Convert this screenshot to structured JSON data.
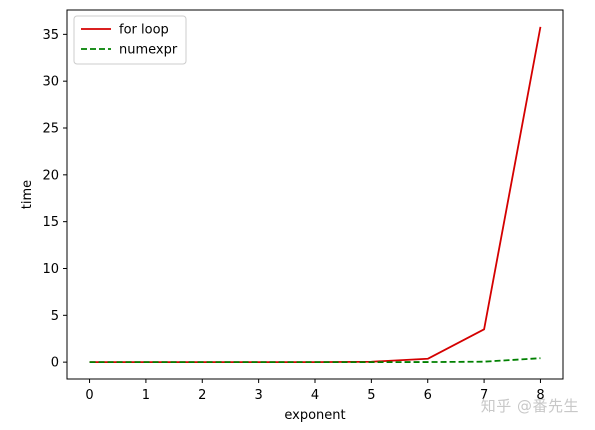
{
  "chart_data": {
    "type": "line",
    "title": "",
    "xlabel": "exponent",
    "ylabel": "time",
    "x": [
      0,
      1,
      2,
      3,
      4,
      5,
      6,
      7,
      8
    ],
    "xlim": [
      -0.4,
      8.4
    ],
    "ylim": [
      -1.8,
      37.6
    ],
    "xticks": [
      0,
      1,
      2,
      3,
      4,
      5,
      6,
      7,
      8
    ],
    "yticks": [
      0,
      5,
      10,
      15,
      20,
      25,
      30,
      35
    ],
    "grid": false,
    "legend_position": "upper-left",
    "series": [
      {
        "name": "for loop",
        "color": "#d40000",
        "linestyle": "solid",
        "values": [
          0.0,
          0.0,
          0.0,
          0.0,
          0.0,
          0.04,
          0.36,
          3.5,
          35.8
        ]
      },
      {
        "name": "numexpr",
        "color": "#008000",
        "linestyle": "dashed",
        "values": [
          0.0,
          0.0,
          0.0,
          0.0,
          0.0,
          0.0,
          0.01,
          0.05,
          0.42
        ]
      }
    ]
  },
  "watermark": "知乎 @番先生"
}
